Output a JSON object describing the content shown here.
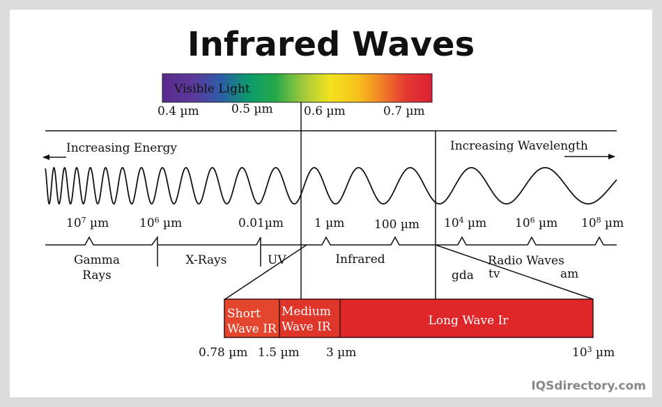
{
  "title": "Infrared Waves",
  "visible_light": {
    "label": "Visible Light",
    "ticks": [
      "0.4 µm",
      "0.5 µm",
      "0.6 µm",
      "0.7 µm"
    ]
  },
  "energy_label": "Increasing Energy",
  "wavelength_label": "Increasing Wavelength",
  "scale": {
    "ticks": [
      {
        "base": "10",
        "exp": "7",
        "unit": " µm"
      },
      {
        "base": "10",
        "exp": "6",
        "unit": " µm"
      },
      {
        "base": "0.01µm",
        "exp": "",
        "unit": ""
      },
      {
        "base": "1 µm",
        "exp": "",
        "unit": ""
      },
      {
        "base": "100 µm",
        "exp": "",
        "unit": ""
      },
      {
        "base": "10",
        "exp": "4",
        "unit": " µm"
      },
      {
        "base": "10",
        "exp": "6",
        "unit": " µm"
      },
      {
        "base": "10",
        "exp": "8",
        "unit": " µm"
      }
    ]
  },
  "regions": {
    "gamma_line1": "Gamma",
    "gamma_line2": "Rays",
    "xrays": "X-Rays",
    "uv": "UV",
    "infrared": "Infrared",
    "radio": "Radio Waves",
    "gda": "gda",
    "tv": "tv",
    "am": "am"
  },
  "ir_bands": {
    "short_line1": "Short",
    "short_line2": "Wave IR",
    "medium_line1": "Medium",
    "medium_line2": "Wave IR",
    "long": "Long Wave Ir",
    "ticks": [
      "0.78 µm",
      "1.5 µm",
      "3 µm"
    ],
    "last_tick": {
      "base": "10",
      "exp": "3",
      "unit": " µm"
    }
  },
  "colors": {
    "short": "#e3462d",
    "medium": "#e0352b",
    "long": "#df2629"
  },
  "brand": "IQSdirectory.com"
}
